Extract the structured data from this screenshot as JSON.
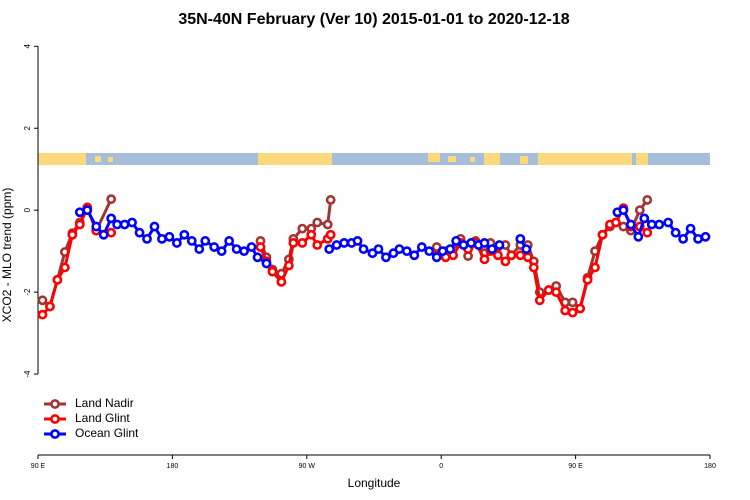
{
  "chart_data": {
    "type": "line",
    "title": "35N-40N February (Ver 10)   2015-01-01 to 2020-12-18",
    "x_label": "Longitude",
    "y_label": "XCO2 - MLO trend (ppm)",
    "xlim": [
      90,
      540
    ],
    "ylim": [
      -6,
      4.3
    ],
    "xticks": [
      {
        "value": 90,
        "label": "90 E"
      },
      {
        "value": 180,
        "label": "180"
      },
      {
        "value": 270,
        "label": "90 W"
      },
      {
        "value": 360,
        "label": "0"
      },
      {
        "value": 450,
        "label": "90 E"
      },
      {
        "value": 540,
        "label": "180"
      }
    ],
    "yticks": [
      -4,
      -2,
      0,
      2,
      4
    ],
    "legend_position": "bottom-left",
    "series": [
      {
        "name": "Land Nadir",
        "color": "#a33434",
        "x": [
          93,
          98,
          103,
          108,
          113,
          118,
          123,
          129,
          139,
          null,
          239,
          243,
          247,
          253,
          258,
          261,
          267,
          273,
          277,
          284,
          286,
          null,
          357,
          363,
          368,
          373,
          378,
          383,
          389,
          393,
          398,
          403,
          407,
          413,
          418,
          422,
          426,
          432,
          437,
          443,
          448,
          453,
          458,
          463,
          468,
          473,
          477,
          482,
          487,
          493,
          498
        ],
        "values": [
          -2.2,
          -2.35,
          -1.7,
          -1.02,
          -0.56,
          -0.3,
          0.07,
          -0.5,
          0.27,
          null,
          -0.75,
          -1.15,
          -1.45,
          -1.55,
          -1.2,
          -0.7,
          -0.45,
          -0.45,
          -0.3,
          -0.35,
          0.25,
          null,
          -0.9,
          -1.0,
          -0.95,
          -0.7,
          -1.12,
          -0.75,
          -1.05,
          -0.8,
          -0.9,
          -0.85,
          -1.1,
          -0.85,
          -0.85,
          -1.25,
          -2.0,
          -1.95,
          -1.85,
          -2.25,
          -2.25,
          -2.4,
          -1.65,
          -1.0,
          -0.6,
          -0.4,
          -0.3,
          -0.4,
          -0.5,
          0.0,
          0.25
        ]
      },
      {
        "name": "Land Glint",
        "color": "#ff0000",
        "x": [
          93,
          98,
          103,
          108,
          113,
          118,
          123,
          129,
          139,
          null,
          239,
          243,
          247,
          253,
          258,
          261,
          267,
          273,
          277,
          284,
          286,
          null,
          357,
          363,
          368,
          373,
          378,
          383,
          389,
          393,
          398,
          403,
          407,
          413,
          418,
          422,
          426,
          432,
          437,
          443,
          448,
          453,
          458,
          463,
          468,
          473,
          477,
          482,
          487,
          493,
          498
        ],
        "values": [
          -2.55,
          -2.35,
          -1.7,
          -1.4,
          -0.6,
          -0.35,
          0.05,
          -0.5,
          -0.55,
          null,
          -0.9,
          -1.25,
          -1.5,
          -1.75,
          -1.35,
          -0.8,
          -0.8,
          -0.6,
          -0.85,
          -0.7,
          -0.6,
          null,
          -1.1,
          -1.15,
          -1.1,
          -0.8,
          -0.95,
          -0.8,
          -1.2,
          -1.0,
          -1.1,
          -1.25,
          -1.1,
          -1.1,
          -1.15,
          -1.4,
          -2.2,
          -1.95,
          -2.0,
          -2.45,
          -2.5,
          -2.4,
          -1.7,
          -1.4,
          -0.6,
          -0.35,
          -0.3,
          0.05,
          -0.4,
          -0.4,
          -0.55
        ]
      },
      {
        "name": "Ocean Glint",
        "color": "#0000ff",
        "x": [
          118,
          123,
          129,
          134,
          139,
          143,
          148,
          153,
          158,
          163,
          168,
          173,
          178,
          183,
          188,
          193,
          198,
          202,
          208,
          213,
          218,
          223,
          228,
          233,
          237,
          243,
          null,
          285,
          290,
          295,
          300,
          304,
          308,
          314,
          318,
          323,
          328,
          332,
          337,
          342,
          347,
          352,
          357,
          361,
          366,
          370,
          375,
          380,
          385,
          389,
          394,
          399,
          null,
          413,
          417,
          null,
          478,
          482,
          487,
          492,
          496,
          501,
          506,
          512,
          517,
          522,
          527,
          532,
          537
        ],
        "values": [
          -0.05,
          0.0,
          -0.4,
          -0.6,
          -0.2,
          -0.35,
          -0.35,
          -0.3,
          -0.55,
          -0.7,
          -0.4,
          -0.7,
          -0.65,
          -0.8,
          -0.6,
          -0.75,
          -0.95,
          -0.75,
          -0.9,
          -1.0,
          -0.75,
          -0.95,
          -1.0,
          -0.9,
          -1.15,
          -1.3,
          null,
          -0.95,
          -0.85,
          -0.8,
          -0.8,
          -0.75,
          -0.95,
          -1.05,
          -0.95,
          -1.15,
          -1.05,
          -0.95,
          -1.0,
          -1.1,
          -0.9,
          -1.0,
          -1.15,
          -1.0,
          -0.95,
          -0.75,
          -0.85,
          -0.8,
          -0.85,
          -0.8,
          -0.95,
          -0.85,
          null,
          -0.7,
          -0.95,
          null,
          -0.05,
          0.0,
          -0.35,
          -0.65,
          -0.2,
          -0.35,
          -0.35,
          -0.3,
          -0.55,
          -0.7,
          -0.45,
          -0.7,
          -0.65
        ]
      }
    ]
  }
}
